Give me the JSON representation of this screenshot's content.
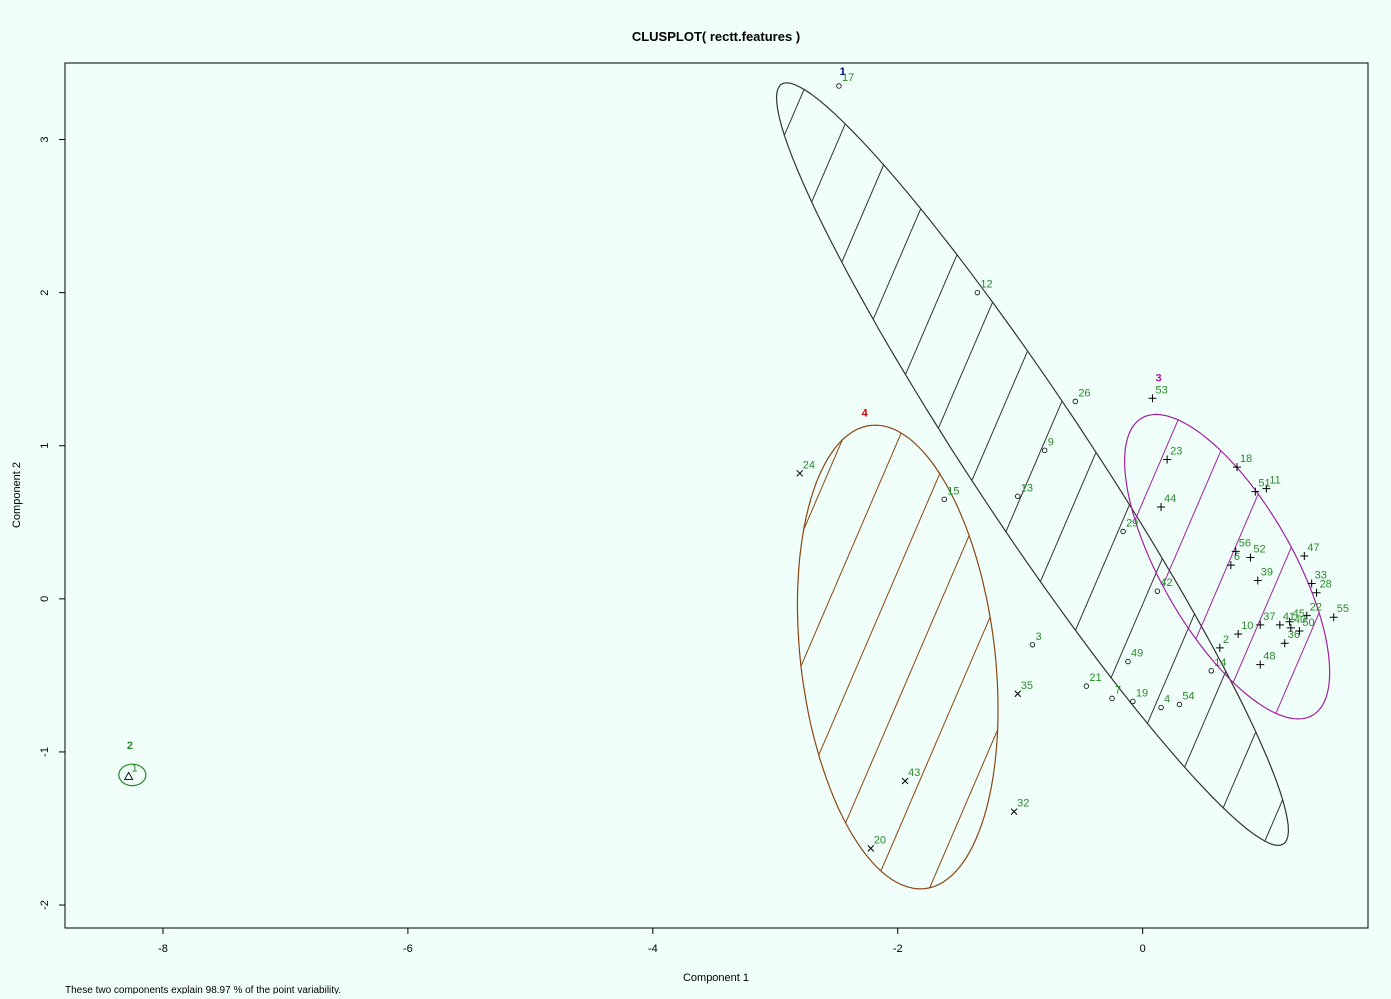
{
  "chart_data": {
    "type": "scatter",
    "title": "CLUSPLOT( rectt.features )",
    "xlabel": "Component 1",
    "ylabel": "Component 2",
    "subtitle": "These two components explain 98.97 % of the point variability.",
    "xlim": [
      -8.8,
      1.84
    ],
    "ylim": [
      -2.15,
      3.5
    ],
    "xticks": [
      -8,
      -6,
      -4,
      -2,
      0
    ],
    "yticks": [
      -2,
      -1,
      0,
      1,
      2,
      3
    ],
    "grid": false,
    "legend": "none",
    "colors": {
      "background": "#f0fff9",
      "axis": "#000000",
      "point_label": "#2a8a2a",
      "cluster1": "#333333",
      "cluster2": "#2a8a2a",
      "cluster3": "#a020a0",
      "cluster4": "#8b4513"
    },
    "clusters": [
      {
        "id": "1",
        "label_x": -2.45,
        "label_y": 3.42,
        "label_color": "#000080",
        "color": "#333333",
        "center": [
          -0.9,
          0.88
        ],
        "a": 3.22,
        "b": 0.45,
        "angle": -50.2
      },
      {
        "id": "2",
        "label_x": -8.27,
        "label_y": -0.98,
        "label_color": "#2a8a2a",
        "color": "#2a8a2a",
        "center": [
          -8.25,
          -1.15
        ],
        "a": 0.11,
        "b": 0.07,
        "angle": 0
      },
      {
        "id": "3",
        "label_x": 0.13,
        "label_y": 1.42,
        "label_color": "#a020a0",
        "color": "#a020a0",
        "center": [
          0.69,
          0.21
        ],
        "a": 1.2,
        "b": 0.5,
        "angle": -52
      },
      {
        "id": "4",
        "label_x": -2.27,
        "label_y": 1.19,
        "label_color": "#cc0000",
        "color": "#8b4513",
        "center": [
          -2.0,
          -0.38
        ],
        "a": 1.53,
        "b": 0.79,
        "angle": -80.5
      }
    ],
    "points": [
      {
        "id": "1",
        "x": -8.28,
        "y": -1.16,
        "sym": "tri"
      },
      {
        "id": "2",
        "x": 0.63,
        "y": -0.32,
        "sym": "plus"
      },
      {
        "id": "3",
        "x": -0.9,
        "y": -0.3,
        "sym": "circ"
      },
      {
        "id": "4",
        "x": 0.15,
        "y": -0.71,
        "sym": "circ"
      },
      {
        "id": "6",
        "x": 0.72,
        "y": 0.22,
        "sym": "plus"
      },
      {
        "id": "7",
        "x": -0.25,
        "y": -0.65,
        "sym": "circ"
      },
      {
        "id": "9",
        "x": -0.8,
        "y": 0.97,
        "sym": "circ"
      },
      {
        "id": "10",
        "x": 0.78,
        "y": -0.23,
        "sym": "plus"
      },
      {
        "id": "11",
        "x": 1.01,
        "y": 0.72,
        "sym": "plus"
      },
      {
        "id": "12",
        "x": -1.35,
        "y": 2.0,
        "sym": "circ"
      },
      {
        "id": "13",
        "x": -1.02,
        "y": 0.67,
        "sym": "circ"
      },
      {
        "id": "14",
        "x": 0.56,
        "y": -0.47,
        "sym": "circ"
      },
      {
        "id": "15",
        "x": -1.62,
        "y": 0.65,
        "sym": "circ"
      },
      {
        "id": "17",
        "x": -2.48,
        "y": 3.35,
        "sym": "circ"
      },
      {
        "id": "18",
        "x": 0.77,
        "y": 0.86,
        "sym": "plus"
      },
      {
        "id": "19",
        "x": -0.08,
        "y": -0.67,
        "sym": "circ"
      },
      {
        "id": "20",
        "x": -2.22,
        "y": -1.63,
        "sym": "cross"
      },
      {
        "id": "21",
        "x": -0.46,
        "y": -0.57,
        "sym": "circ"
      },
      {
        "id": "22",
        "x": 1.34,
        "y": -0.11,
        "sym": "plus"
      },
      {
        "id": "23",
        "x": 0.2,
        "y": 0.91,
        "sym": "plus"
      },
      {
        "id": "24",
        "x": -2.8,
        "y": 0.82,
        "sym": "cross"
      },
      {
        "id": "26",
        "x": -0.55,
        "y": 1.29,
        "sym": "circ"
      },
      {
        "id": "28",
        "x": 1.42,
        "y": 0.04,
        "sym": "plus"
      },
      {
        "id": "29",
        "x": -0.16,
        "y": 0.44,
        "sym": "circ"
      },
      {
        "id": "32",
        "x": -1.05,
        "y": -1.39,
        "sym": "cross"
      },
      {
        "id": "33",
        "x": 1.38,
        "y": 0.1,
        "sym": "plus"
      },
      {
        "id": "35",
        "x": -1.02,
        "y": -0.62,
        "sym": "cross"
      },
      {
        "id": "36",
        "x": 1.16,
        "y": -0.29,
        "sym": "plus"
      },
      {
        "id": "37",
        "x": 0.96,
        "y": -0.17,
        "sym": "plus"
      },
      {
        "id": "39",
        "x": 0.94,
        "y": 0.12,
        "sym": "plus"
      },
      {
        "id": "40",
        "x": 1.21,
        "y": -0.19,
        "sym": "plus"
      },
      {
        "id": "41",
        "x": 1.12,
        "y": -0.17,
        "sym": "plus"
      },
      {
        "id": "42",
        "x": 0.12,
        "y": 0.05,
        "sym": "circ"
      },
      {
        "id": "43",
        "x": -1.94,
        "y": -1.19,
        "sym": "cross"
      },
      {
        "id": "44",
        "x": 0.15,
        "y": 0.6,
        "sym": "plus"
      },
      {
        "id": "45",
        "x": 1.2,
        "y": -0.15,
        "sym": "plus"
      },
      {
        "id": "47",
        "x": 1.32,
        "y": 0.28,
        "sym": "plus"
      },
      {
        "id": "48",
        "x": 0.96,
        "y": -0.43,
        "sym": "plus"
      },
      {
        "id": "49",
        "x": -0.12,
        "y": -0.41,
        "sym": "circ"
      },
      {
        "id": "50",
        "x": 1.28,
        "y": -0.21,
        "sym": "plus"
      },
      {
        "id": "51",
        "x": 0.92,
        "y": 0.7,
        "sym": "plus"
      },
      {
        "id": "52",
        "x": 0.88,
        "y": 0.27,
        "sym": "plus"
      },
      {
        "id": "53",
        "x": 0.08,
        "y": 1.31,
        "sym": "plus"
      },
      {
        "id": "54",
        "x": 0.3,
        "y": -0.69,
        "sym": "circ"
      },
      {
        "id": "55",
        "x": 1.56,
        "y": -0.12,
        "sym": "plus"
      },
      {
        "id": "56",
        "x": 0.76,
        "y": 0.31,
        "sym": "plus"
      }
    ]
  }
}
